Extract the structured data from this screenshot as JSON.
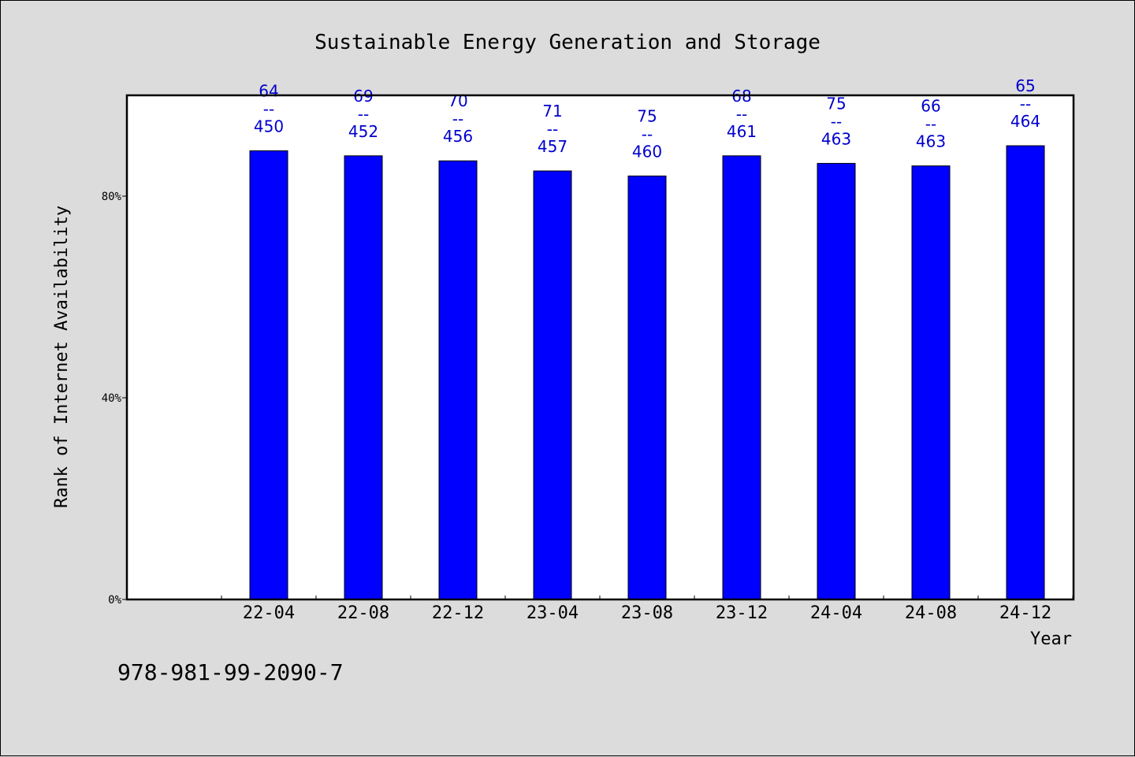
{
  "chart_data": {
    "type": "bar",
    "title": "Sustainable Energy Generation and Storage",
    "xlabel": "Year",
    "ylabel": "Rank of Internet Availability",
    "categories": [
      "22-04",
      "22-08",
      "22-12",
      "23-04",
      "23-08",
      "23-12",
      "24-04",
      "24-08",
      "24-12"
    ],
    "values": [
      89,
      88,
      87,
      85,
      84,
      88,
      86.5,
      86,
      90
    ],
    "data_labels": [
      [
        "64",
        "450"
      ],
      [
        "69",
        "452"
      ],
      [
        "70",
        "456"
      ],
      [
        "71",
        "457"
      ],
      [
        "75",
        "460"
      ],
      [
        "68",
        "461"
      ],
      [
        "75",
        "463"
      ],
      [
        "66",
        "463"
      ],
      [
        "65",
        "464"
      ]
    ],
    "data_label_separator": "--",
    "ylim": [
      0,
      100
    ],
    "yticks": [
      0,
      40,
      80
    ],
    "ytick_labels": [
      "0%",
      "40%",
      "80%"
    ],
    "grid": false,
    "bar_color": "#0000ff",
    "label_color": "#0000cc"
  },
  "footer": {
    "isbn": "978-981-99-2090-7"
  }
}
